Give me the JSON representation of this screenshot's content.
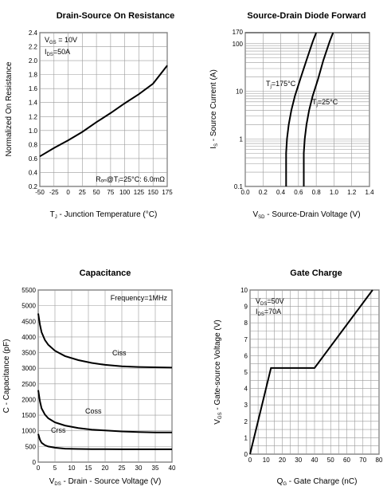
{
  "chart_data": [
    {
      "type": "line",
      "title": "Drain-Source On Resistance",
      "xlabel_main": "T",
      "xlabel_sub": "J",
      "xlabel_rest": " - Junction Temperature (°C)",
      "ylabel": "Normalized On Resistance",
      "xlim": [
        -50,
        175
      ],
      "ylim": [
        0.2,
        2.4
      ],
      "xticks": [
        -50,
        -25,
        0,
        25,
        50,
        75,
        100,
        125,
        150,
        175
      ],
      "yticks": [
        "0.2",
        "0.4",
        "0.6",
        "0.8",
        "1.0",
        "1.2",
        "1.4",
        "1.6",
        "1.8",
        "2.0",
        "2.2",
        "2.4"
      ],
      "grid": true,
      "annotation_l1_main": "V",
      "annotation_l1_sub": "GS",
      "annotation_l1_rest": " = 10V",
      "annotation_l2_main": "I",
      "annotation_l2_sub": "DS",
      "annotation_l2_rest": "=50A",
      "annotation_bottom": "Rₒₙ@Tⱼ=25°C: 6.0mΩ",
      "series": [
        {
          "x": [
            -50,
            -25,
            0,
            25,
            50,
            75,
            100,
            125,
            150,
            175
          ],
          "y": [
            0.63,
            0.75,
            0.86,
            0.98,
            1.12,
            1.25,
            1.39,
            1.52,
            1.67,
            1.93
          ]
        }
      ]
    },
    {
      "type": "line",
      "title": "Source-Drain Diode Forward",
      "xlabel_main": "V",
      "xlabel_sub": "SD",
      "xlabel_rest": " - Source-Drain Voltage (V)",
      "ylabel_main": "I",
      "ylabel_sub": "S",
      "ylabel_rest": " - Source Current (A)",
      "xlim": [
        0.0,
        1.4
      ],
      "ylim": [
        0.1,
        170
      ],
      "yscale": "log",
      "xticks": [
        "0.0",
        "0.2",
        "0.4",
        "0.6",
        "0.8",
        "1.0",
        "1.2",
        "1.4"
      ],
      "yticks": [
        {
          "v": 0.1,
          "label": "0.1"
        },
        {
          "v": 1,
          "label": "1"
        },
        {
          "v": 10,
          "label": "10"
        },
        {
          "v": 100,
          "label": "100"
        },
        {
          "v": 170,
          "label": "170"
        }
      ],
      "grid": true,
      "series": [
        {
          "label": "Tj=175°C",
          "x": [
            0.46,
            0.46,
            0.47,
            0.49,
            0.52,
            0.56,
            0.62,
            0.69,
            0.76,
            0.8
          ],
          "y": [
            0.1,
            0.5,
            1,
            2,
            4,
            8,
            18,
            45,
            110,
            170
          ]
        },
        {
          "label": "Tj=25°C",
          "x": [
            0.66,
            0.66,
            0.67,
            0.69,
            0.72,
            0.76,
            0.82,
            0.88,
            0.95,
            0.99
          ],
          "y": [
            0.1,
            0.5,
            1,
            2,
            4,
            8,
            18,
            45,
            110,
            170
          ]
        }
      ]
    },
    {
      "type": "line",
      "title": "Capacitance",
      "xlabel_main": "V",
      "xlabel_sub": "DS",
      "xlabel_rest": " - Drain - Source Voltage (V)",
      "ylabel": "C - Capacitance (pF)",
      "xlim": [
        0,
        40
      ],
      "ylim": [
        0,
        5500
      ],
      "xticks": [
        0,
        5,
        10,
        15,
        20,
        25,
        30,
        35,
        40
      ],
      "yticks": [
        0,
        500,
        1000,
        1500,
        2000,
        2500,
        3000,
        3500,
        4000,
        4500,
        5000,
        5500
      ],
      "grid": true,
      "annotation": "Frequency=1MHz",
      "series": [
        {
          "name": "Ciss",
          "x": [
            0,
            0.5,
            1,
            2,
            3,
            5,
            8,
            12,
            16,
            20,
            25,
            30,
            35,
            40
          ],
          "y": [
            4750,
            4400,
            4150,
            3900,
            3750,
            3560,
            3390,
            3260,
            3170,
            3110,
            3060,
            3040,
            3030,
            3020
          ]
        },
        {
          "name": "Coss",
          "x": [
            0,
            0.5,
            1,
            2,
            3,
            5,
            8,
            12,
            16,
            20,
            25,
            30,
            35,
            40
          ],
          "y": [
            2300,
            1950,
            1720,
            1520,
            1400,
            1270,
            1170,
            1090,
            1040,
            1010,
            980,
            960,
            950,
            950
          ]
        },
        {
          "name": "Crss",
          "x": [
            0,
            0.5,
            1,
            2,
            3,
            5,
            8,
            12,
            16,
            20,
            25,
            30,
            35,
            40
          ],
          "y": [
            900,
            720,
            620,
            540,
            500,
            460,
            430,
            420,
            415,
            412,
            410,
            410,
            410,
            410
          ]
        }
      ]
    },
    {
      "type": "line",
      "title": "Gate Charge",
      "xlabel_main": "Q",
      "xlabel_sub": "G",
      "xlabel_rest": " - Gate Charge (nC)",
      "ylabel_main": "V",
      "ylabel_sub": "GS",
      "ylabel_rest": " - Gate-source Voltage (V)",
      "xlim": [
        0,
        80
      ],
      "ylim": [
        0,
        10
      ],
      "xticks": [
        0,
        10,
        20,
        30,
        40,
        50,
        60,
        70,
        80
      ],
      "yticks": [
        0,
        1,
        2,
        3,
        4,
        5,
        6,
        7,
        8,
        9,
        10
      ],
      "grid": true,
      "annotation_l1_main": "V",
      "annotation_l1_sub": "DS",
      "annotation_l1_rest": "=50V",
      "annotation_l2_main": "I",
      "annotation_l2_sub": "DS",
      "annotation_l2_rest": "=70A",
      "series": [
        {
          "x": [
            0,
            13,
            40,
            76
          ],
          "y": [
            0,
            5.25,
            5.25,
            10
          ]
        }
      ]
    }
  ]
}
